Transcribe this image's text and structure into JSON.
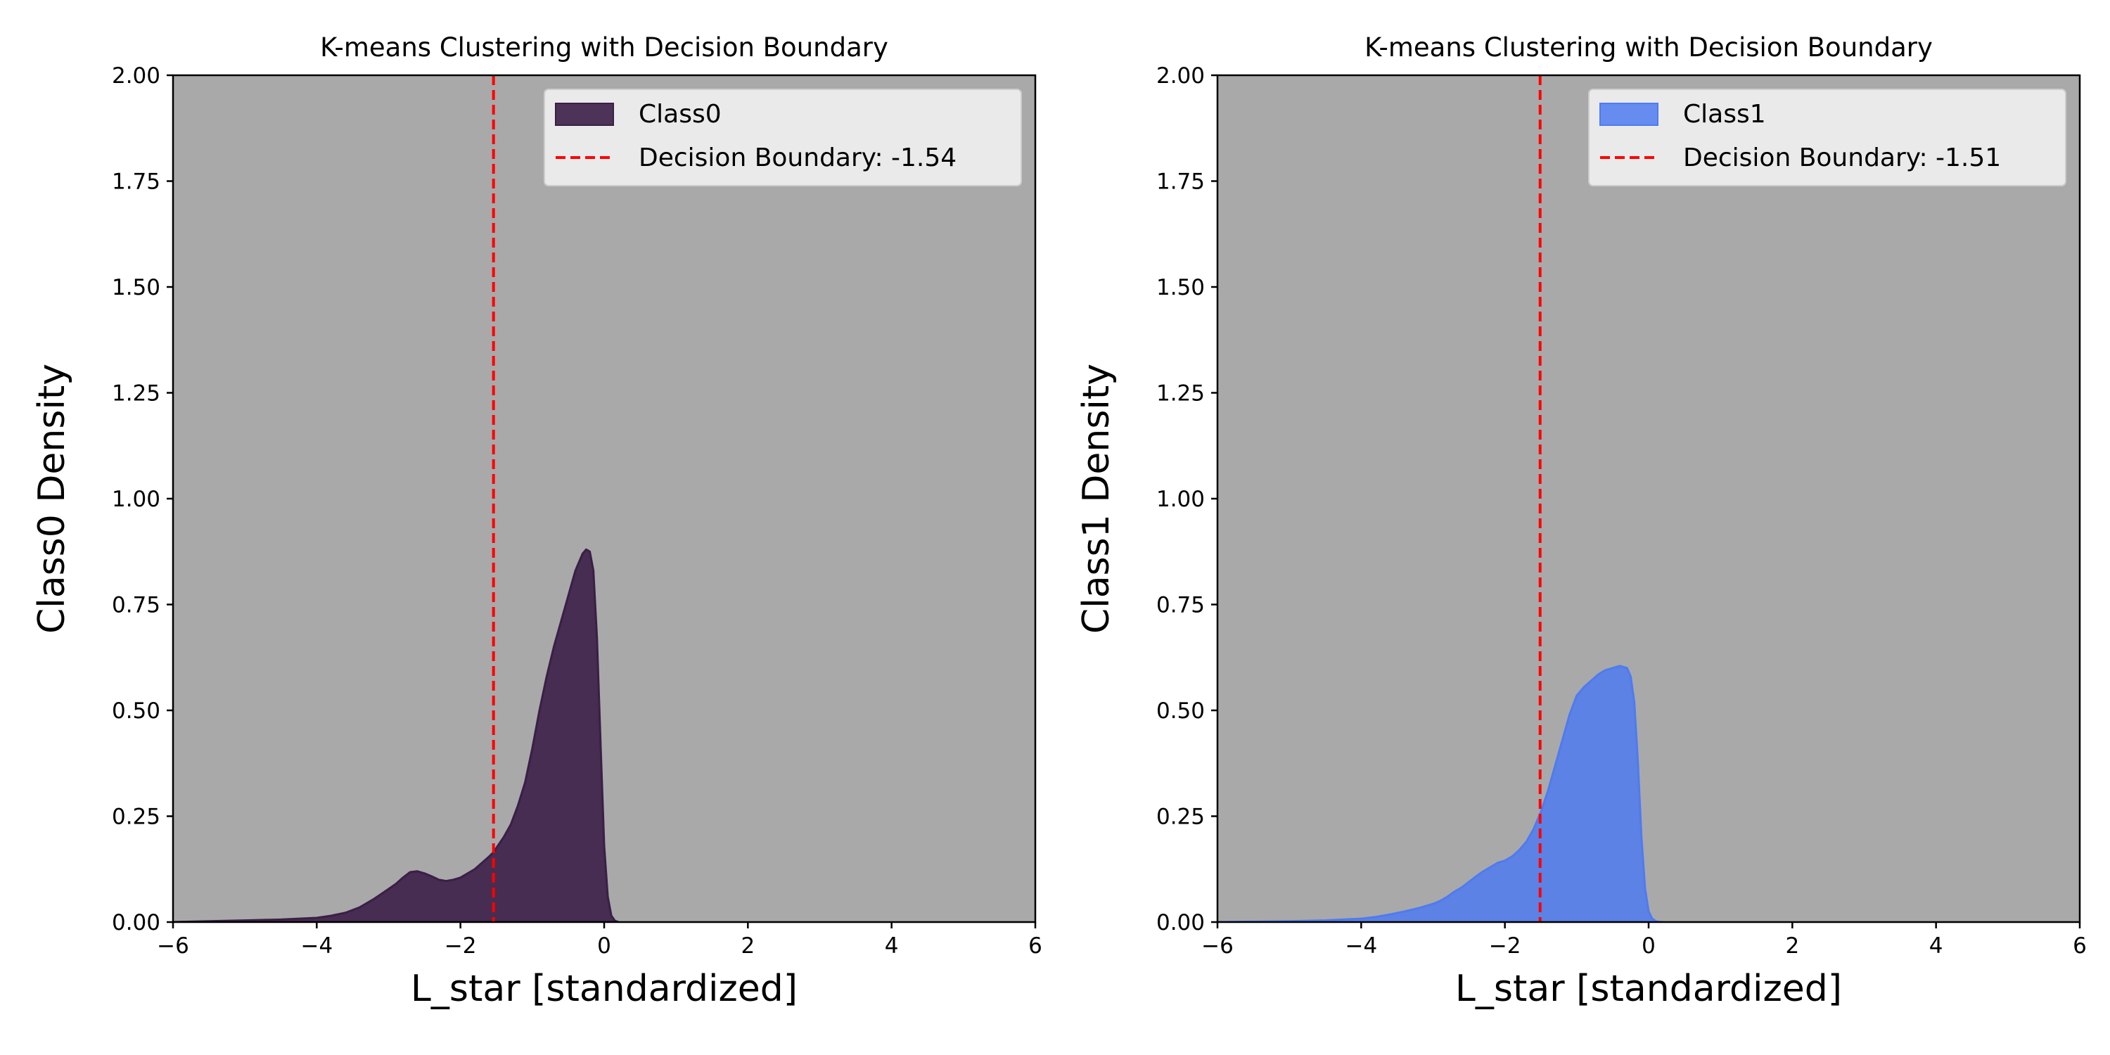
{
  "figure_background": "#ffffff",
  "plot_background": "#a9a9a9",
  "chart_data": [
    {
      "type": "area",
      "title": "K-means Clustering with Decision Boundary",
      "xlabel": "L_star [standardized]",
      "ylabel": "Class0 Density",
      "xlim": [
        -6,
        6
      ],
      "ylim": [
        0,
        2
      ],
      "xticks": [
        -6,
        -4,
        -2,
        0,
        2,
        4,
        6
      ],
      "xtick_labels": [
        "−6",
        "−4",
        "−2",
        "0",
        "2",
        "4",
        "6"
      ],
      "yticks": [
        0,
        0.25,
        0.5,
        0.75,
        1.0,
        1.25,
        1.5,
        1.75,
        2.0
      ],
      "ytick_labels": [
        "0.00",
        "0.25",
        "0.50",
        "0.75",
        "1.00",
        "1.25",
        "1.50",
        "1.75",
        "2.00"
      ],
      "grid": false,
      "legend_position": "upper right",
      "series": [
        {
          "name": "Class0",
          "color": "#3b1f47",
          "fill_opacity": 0.9,
          "x": [
            -6.0,
            -5.5,
            -5.0,
            -4.5,
            -4.0,
            -3.8,
            -3.6,
            -3.4,
            -3.2,
            -3.0,
            -2.9,
            -2.8,
            -2.7,
            -2.6,
            -2.5,
            -2.4,
            -2.3,
            -2.2,
            -2.1,
            -2.0,
            -1.9,
            -1.8,
            -1.7,
            -1.6,
            -1.54,
            -1.5,
            -1.4,
            -1.3,
            -1.2,
            -1.1,
            -1.0,
            -0.9,
            -0.8,
            -0.7,
            -0.6,
            -0.5,
            -0.4,
            -0.3,
            -0.25,
            -0.2,
            -0.15,
            -0.1,
            -0.05,
            0.0,
            0.05,
            0.1,
            0.15,
            0.2
          ],
          "y": [
            0.0,
            0.002,
            0.004,
            0.006,
            0.01,
            0.015,
            0.022,
            0.035,
            0.055,
            0.078,
            0.09,
            0.105,
            0.118,
            0.12,
            0.115,
            0.108,
            0.1,
            0.097,
            0.1,
            0.105,
            0.115,
            0.125,
            0.14,
            0.155,
            0.165,
            0.175,
            0.2,
            0.23,
            0.275,
            0.33,
            0.41,
            0.5,
            0.58,
            0.65,
            0.71,
            0.77,
            0.83,
            0.87,
            0.88,
            0.875,
            0.83,
            0.67,
            0.42,
            0.18,
            0.06,
            0.015,
            0.003,
            0.0
          ]
        }
      ],
      "boundary": {
        "label": "Decision Boundary: -1.54",
        "x": -1.54,
        "color": "#ff0000"
      }
    },
    {
      "type": "area",
      "title": "K-means Clustering with Decision Boundary",
      "xlabel": "L_star [standardized]",
      "ylabel": "Class1 Density",
      "xlim": [
        -6,
        6
      ],
      "ylim": [
        0,
        2
      ],
      "xticks": [
        -6,
        -4,
        -2,
        0,
        2,
        4,
        6
      ],
      "xtick_labels": [
        "−6",
        "−4",
        "−2",
        "0",
        "2",
        "4",
        "6"
      ],
      "yticks": [
        0,
        0.25,
        0.5,
        0.75,
        1.0,
        1.25,
        1.5,
        1.75,
        2.0
      ],
      "ytick_labels": [
        "0.00",
        "0.25",
        "0.50",
        "0.75",
        "1.00",
        "1.25",
        "1.50",
        "1.75",
        "2.00"
      ],
      "grid": false,
      "legend_position": "upper right",
      "series": [
        {
          "name": "Class1",
          "color": "#4f7bf0",
          "fill_opacity": 0.85,
          "x": [
            -6.0,
            -5.5,
            -5.0,
            -4.5,
            -4.0,
            -3.8,
            -3.6,
            -3.4,
            -3.2,
            -3.0,
            -2.9,
            -2.8,
            -2.7,
            -2.6,
            -2.5,
            -2.4,
            -2.3,
            -2.2,
            -2.1,
            -2.0,
            -1.9,
            -1.8,
            -1.7,
            -1.6,
            -1.5,
            -1.4,
            -1.3,
            -1.2,
            -1.1,
            -1.0,
            -0.9,
            -0.8,
            -0.7,
            -0.6,
            -0.5,
            -0.4,
            -0.3,
            -0.25,
            -0.2,
            -0.15,
            -0.1,
            -0.05,
            0.0,
            0.05,
            0.1,
            0.15,
            0.2
          ],
          "y": [
            0.0,
            0.001,
            0.002,
            0.004,
            0.008,
            0.012,
            0.018,
            0.025,
            0.033,
            0.043,
            0.05,
            0.06,
            0.072,
            0.082,
            0.095,
            0.108,
            0.12,
            0.13,
            0.14,
            0.145,
            0.155,
            0.17,
            0.19,
            0.22,
            0.26,
            0.31,
            0.37,
            0.43,
            0.49,
            0.535,
            0.555,
            0.57,
            0.585,
            0.595,
            0.6,
            0.605,
            0.6,
            0.58,
            0.52,
            0.38,
            0.2,
            0.08,
            0.025,
            0.008,
            0.002,
            0.0005,
            0.0
          ]
        }
      ],
      "boundary": {
        "label": "Decision Boundary: -1.51",
        "x": -1.51,
        "color": "#ff0000"
      }
    }
  ]
}
